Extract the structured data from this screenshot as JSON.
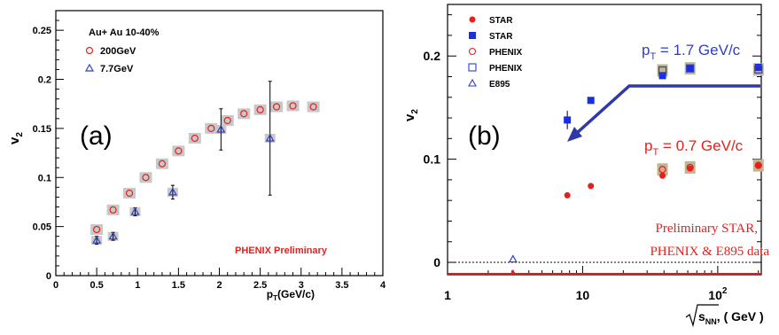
{
  "chart_data": [
    {
      "type": "scatter",
      "panel_label": "(a)",
      "xlabel": "p",
      "xlabel_sub": "T",
      "xlabel_suffix": "(GeV/c)",
      "ylabel": "v",
      "ylabel_sub": "2",
      "xlim": [
        0,
        4
      ],
      "ylim": [
        0,
        0.27
      ],
      "x_ticks": [
        "0",
        "0.5",
        "1",
        "1.5",
        "2",
        "2.5",
        "3",
        "3.5",
        "4"
      ],
      "y_ticks": [
        "0.05",
        "0.1",
        "0.15",
        "0.2",
        "0.25"
      ],
      "legend_title": "Au+ Au 10-40%",
      "legend_position": "top-left",
      "annotation": "PHENIX Preliminary",
      "series": [
        {
          "name": "200GeV",
          "marker": "open-circle",
          "color": "#e8201c",
          "points": [
            {
              "x": 0.5,
              "y": 0.047
            },
            {
              "x": 0.7,
              "y": 0.067
            },
            {
              "x": 0.9,
              "y": 0.084
            },
            {
              "x": 1.1,
              "y": 0.1
            },
            {
              "x": 1.3,
              "y": 0.114
            },
            {
              "x": 1.5,
              "y": 0.127
            },
            {
              "x": 1.7,
              "y": 0.14
            },
            {
              "x": 1.9,
              "y": 0.15
            },
            {
              "x": 2.1,
              "y": 0.158
            },
            {
              "x": 2.3,
              "y": 0.165
            },
            {
              "x": 2.5,
              "y": 0.169
            },
            {
              "x": 2.7,
              "y": 0.172
            },
            {
              "x": 2.9,
              "y": 0.173
            },
            {
              "x": 3.15,
              "y": 0.172
            }
          ]
        },
        {
          "name": "7.7GeV",
          "marker": "open-triangle",
          "color": "#2f3ec8",
          "points": [
            {
              "x": 0.5,
              "y": 0.036,
              "err": 0.004
            },
            {
              "x": 0.7,
              "y": 0.04,
              "err": 0.004
            },
            {
              "x": 0.97,
              "y": 0.065,
              "err": 0.004
            },
            {
              "x": 1.43,
              "y": 0.085,
              "err": 0.007
            },
            {
              "x": 2.02,
              "y": 0.149,
              "err": 0.021
            },
            {
              "x": 2.62,
              "y": 0.14,
              "err": 0.058
            }
          ]
        }
      ]
    },
    {
      "type": "scatter",
      "panel_label": "(b)",
      "xlabel": "s",
      "xlabel_sub": "NN",
      "xlabel_suffix": ", ( GeV )",
      "ylabel": "v",
      "ylabel_sub": "2",
      "x_scale": "log",
      "xlim": [
        1,
        210
      ],
      "ylim": [
        -0.012,
        0.25
      ],
      "x_ticks": [
        {
          "v": 1,
          "label": "1"
        },
        {
          "v": 10,
          "label": "10"
        },
        {
          "v": 100,
          "label": "10",
          "sup": "2"
        }
      ],
      "y_ticks": [
        "0",
        "0.1",
        "0.2"
      ],
      "legend_position": "top-left",
      "annotations": {
        "upper": {
          "text_main": "p",
          "sub": "T",
          "rest": " = 1.7 GeV/c",
          "color": "#2f3ec8"
        },
        "lower": {
          "text_main": "p",
          "sub": "T",
          "rest": " = 0.7 GeV/c",
          "color": "#e8201c"
        },
        "note_line1": "Preliminary STAR,",
        "note_line2": "PHENIX & E895 data"
      },
      "series": [
        {
          "name": "STAR",
          "marker": "filled-circle",
          "color": "#e8201c",
          "points": [
            {
              "x": 7.7,
              "y": 0.065
            },
            {
              "x": 11.5,
              "y": 0.074
            },
            {
              "x": 39,
              "y": 0.084
            },
            {
              "x": 62.4,
              "y": 0.091
            },
            {
              "x": 200,
              "y": 0.094
            }
          ]
        },
        {
          "name": "STAR",
          "marker": "filled-square",
          "color": "#1a2ee0",
          "points": [
            {
              "x": 7.7,
              "y": 0.138,
              "err": 0.009
            },
            {
              "x": 11.5,
              "y": 0.157
            },
            {
              "x": 39,
              "y": 0.181
            },
            {
              "x": 62.4,
              "y": 0.188
            },
            {
              "x": 200,
              "y": 0.189
            }
          ]
        },
        {
          "name": "PHENIX",
          "marker": "open-circle",
          "color": "#e8201c",
          "points": [
            {
              "x": 39,
              "y": 0.09
            },
            {
              "x": 62.4,
              "y": 0.092
            },
            {
              "x": 200,
              "y": 0.094
            }
          ]
        },
        {
          "name": "PHENIX",
          "marker": "open-square",
          "color": "#2f3ec8",
          "points": [
            {
              "x": 39,
              "y": 0.186
            },
            {
              "x": 62.4,
              "y": 0.188
            },
            {
              "x": 200,
              "y": 0.187
            }
          ]
        },
        {
          "name": "E895",
          "marker": "open-triangle",
          "color": "#2f3ec8",
          "points": [
            {
              "x": 3.05,
              "y": 0.003
            }
          ]
        }
      ]
    }
  ]
}
